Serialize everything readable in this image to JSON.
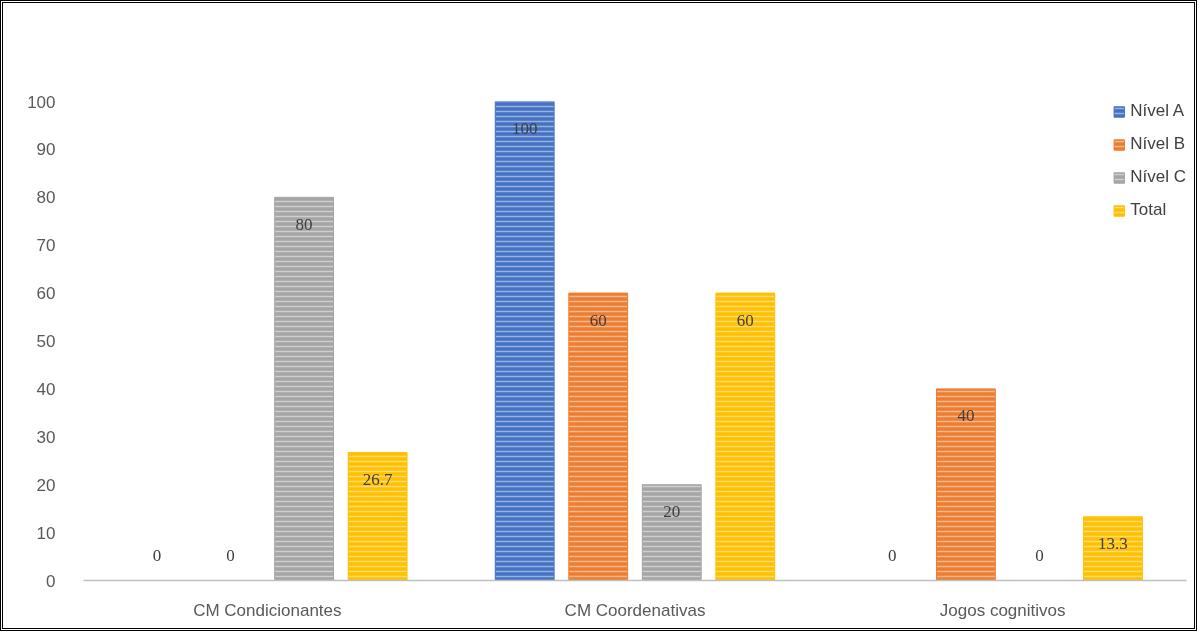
{
  "chart_data": {
    "type": "bar",
    "categories": [
      "CM Condicionantes",
      "CM Coordenativas",
      "Jogos cognitivos"
    ],
    "series": [
      {
        "name": "Nível A",
        "color": "#4472c4",
        "values": [
          0,
          100,
          0
        ]
      },
      {
        "name": "Nível B",
        "color": "#ed7d31",
        "values": [
          0,
          60,
          40
        ]
      },
      {
        "name": "Nível C",
        "color": "#a5a5a5",
        "values": [
          80,
          20,
          0
        ]
      },
      {
        "name": "Total",
        "color": "#ffc000",
        "values": [
          26.7,
          60,
          13.3
        ]
      }
    ],
    "ylim": [
      0,
      100
    ],
    "yticks": [
      0,
      10,
      20,
      30,
      40,
      50,
      60,
      70,
      80,
      90,
      100
    ],
    "grid": false,
    "legend": "top right",
    "data_labels": true
  }
}
